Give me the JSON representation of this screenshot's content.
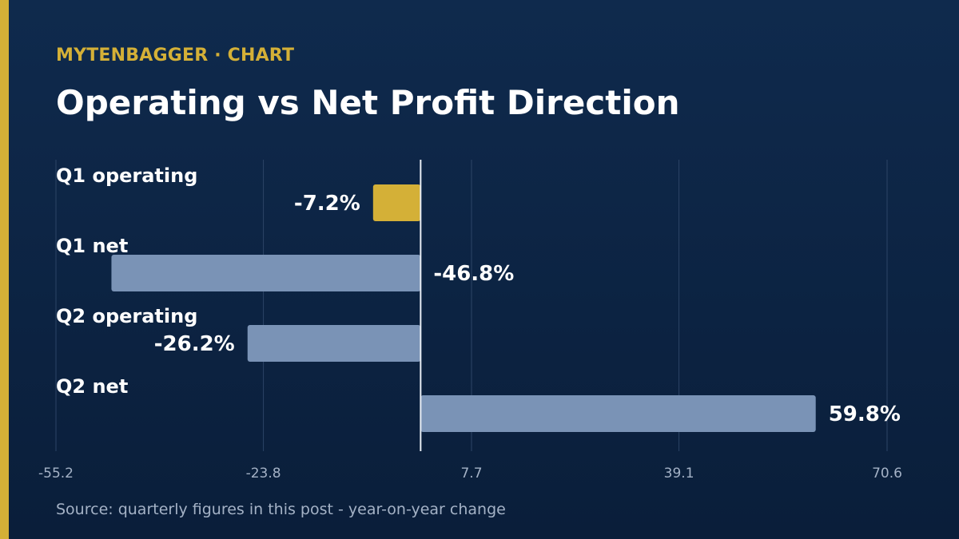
{
  "header": {
    "eyebrow": "MYTENBAGGER · CHART",
    "title": "Operating vs Net Profit Direction"
  },
  "footer": {
    "source": "Source: quarterly figures in this post - year-on-year change"
  },
  "colors": {
    "accent": "#d4b037",
    "bar_default": "#7a93b6",
    "bar_highlight": "#d4b037",
    "grid": "#2c4466",
    "zero_line": "#e8edf4",
    "label": "#ffffff",
    "tick": "#a4b2c6"
  },
  "chart_data": {
    "type": "bar",
    "orientation": "horizontal",
    "categories": [
      "Q1 operating",
      "Q1 net",
      "Q2 operating",
      "Q2 net"
    ],
    "values": [
      -7.2,
      -46.8,
      -26.2,
      59.8
    ],
    "value_labels": [
      "-7.2%",
      "-46.8%",
      "-26.2%",
      "59.8%"
    ],
    "highlight": [
      true,
      false,
      false,
      false
    ],
    "xlim": [
      -55.2,
      70.6
    ],
    "xticks": [
      -55.2,
      -23.8,
      7.7,
      39.1,
      70.6
    ],
    "xtick_labels": [
      "-55.2",
      "-23.8",
      "7.7",
      "39.1",
      "70.6"
    ],
    "grid": true,
    "legend": "none"
  }
}
